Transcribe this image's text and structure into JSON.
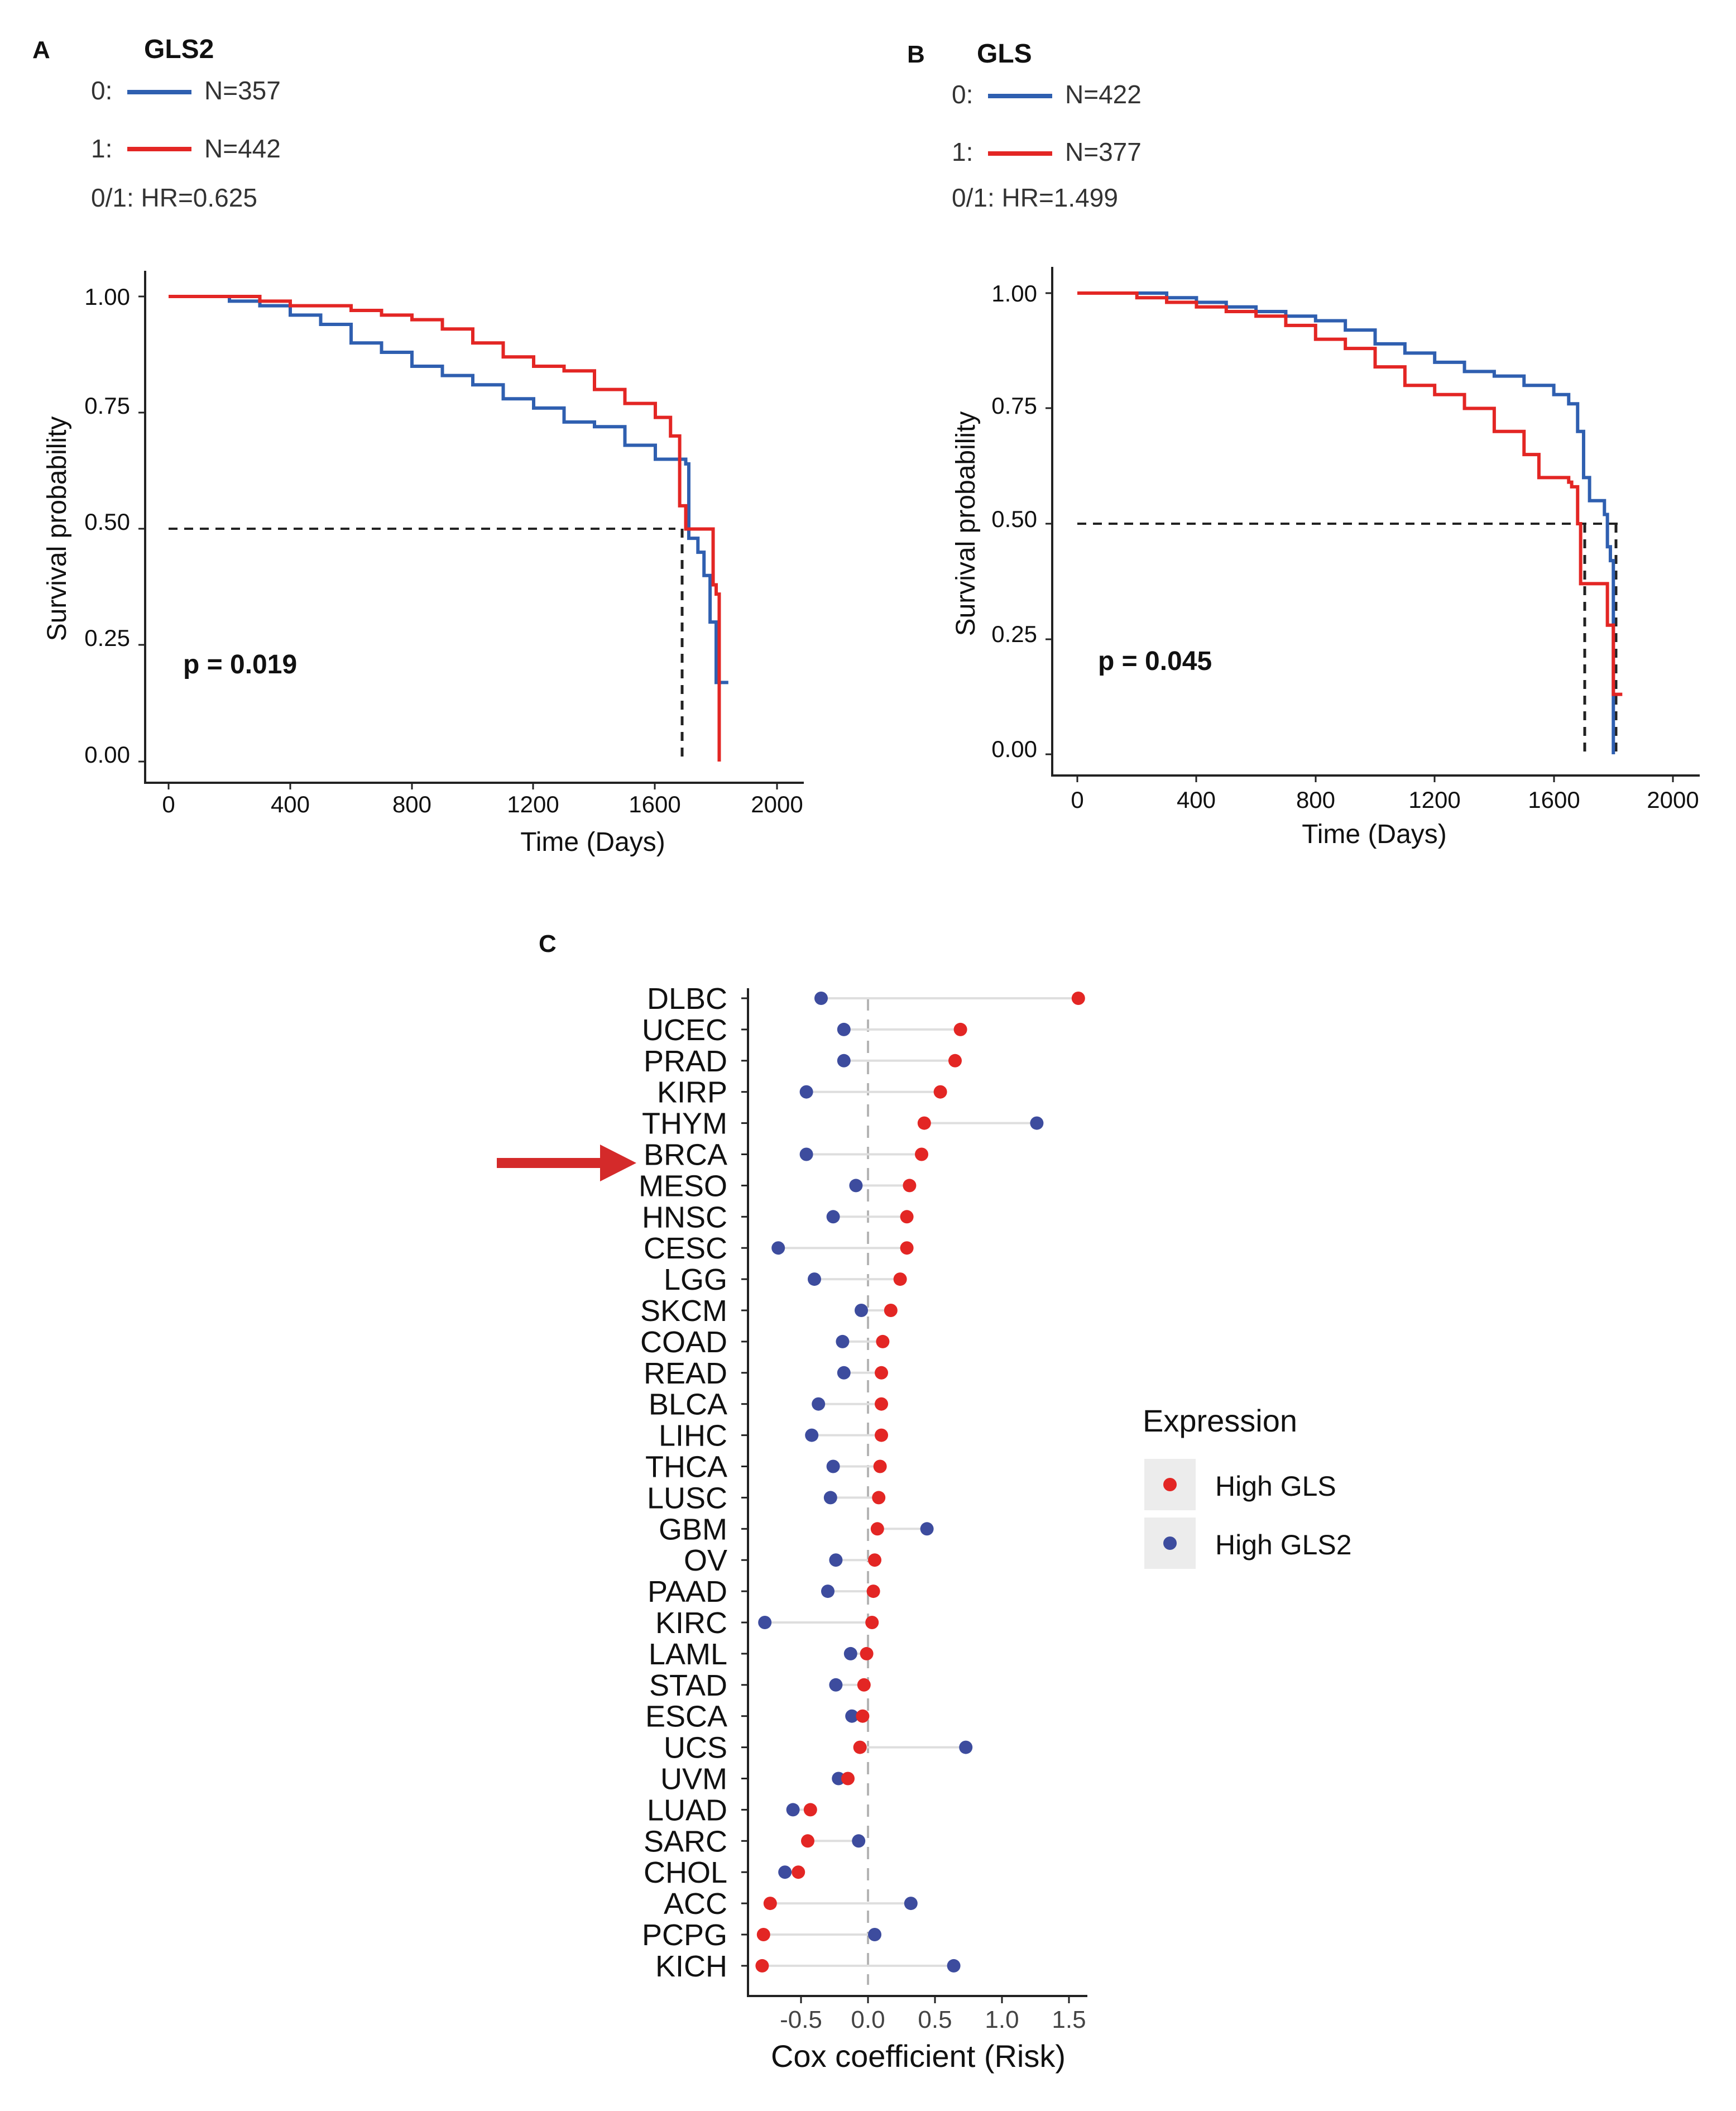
{
  "colors": {
    "group0": "#2f5fb0",
    "group1": "#e32624",
    "highGLS": "#e32624",
    "highGLS2": "#3d4c9e",
    "arrow": "#d42a2a",
    "segment": "#dedede",
    "axis": "#222222"
  },
  "panels": {
    "a": {
      "letter": "A",
      "gene": "GLS2",
      "legend": [
        {
          "key": "0:",
          "label": "N=357"
        },
        {
          "key": "1:",
          "label": "N=442"
        }
      ],
      "hr_text": "0/1: HR=0.625",
      "p_text": "p = 0.019",
      "ylabel": "Survival probability",
      "xlabel": "Time (Days)",
      "yticks": [
        "0.00",
        "0.25",
        "0.50",
        "0.75",
        "1.00"
      ],
      "xticks": [
        "0",
        "400",
        "800",
        "1200",
        "1600",
        "2000"
      ]
    },
    "b": {
      "letter": "B",
      "gene": "GLS",
      "legend": [
        {
          "key": "0:",
          "label": "N=422"
        },
        {
          "key": "1:",
          "label": "N=377"
        }
      ],
      "hr_text": "0/1: HR=1.499",
      "p_text": "p = 0.045",
      "ylabel": "Survival probability",
      "xlabel": "Time (Days)",
      "yticks": [
        "0.00",
        "0.25",
        "0.50",
        "0.75",
        "1.00"
      ],
      "xticks": [
        "0",
        "400",
        "800",
        "1200",
        "1600",
        "2000"
      ]
    },
    "c": {
      "letter": "C",
      "xlabel": "Cox coefficient (Risk)",
      "xticks": [
        "-0.5",
        "0.0",
        "0.5",
        "1.0",
        "1.5"
      ],
      "legend_title": "Expression",
      "legend_items": [
        "High GLS",
        "High GLS2"
      ],
      "highlight": "BRCA"
    }
  },
  "chart_data": [
    {
      "type": "line",
      "title": "GLS2",
      "xlabel": "Time (Days)",
      "ylabel": "Survival probability",
      "xlim": [
        0,
        2000
      ],
      "ylim": [
        0,
        1
      ],
      "median_line_y": 0.5,
      "series": [
        {
          "name": "0 (N=357)",
          "color": "#2f5fb0",
          "points": [
            [
              0,
              1.0
            ],
            [
              100,
              1.0
            ],
            [
              200,
              0.99
            ],
            [
              300,
              0.98
            ],
            [
              400,
              0.96
            ],
            [
              500,
              0.94
            ],
            [
              600,
              0.9
            ],
            [
              700,
              0.88
            ],
            [
              800,
              0.85
            ],
            [
              900,
              0.83
            ],
            [
              1000,
              0.81
            ],
            [
              1100,
              0.78
            ],
            [
              1200,
              0.76
            ],
            [
              1300,
              0.73
            ],
            [
              1400,
              0.72
            ],
            [
              1500,
              0.68
            ],
            [
              1600,
              0.65
            ],
            [
              1700,
              0.64
            ],
            [
              1710,
              0.48
            ],
            [
              1740,
              0.45
            ],
            [
              1760,
              0.4
            ],
            [
              1780,
              0.3
            ],
            [
              1800,
              0.17
            ],
            [
              1840,
              0.17
            ]
          ]
        },
        {
          "name": "1 (N=442)",
          "color": "#e32624",
          "points": [
            [
              0,
              1.0
            ],
            [
              100,
              1.0
            ],
            [
              200,
              1.0
            ],
            [
              300,
              0.99
            ],
            [
              400,
              0.98
            ],
            [
              500,
              0.98
            ],
            [
              600,
              0.97
            ],
            [
              700,
              0.96
            ],
            [
              800,
              0.95
            ],
            [
              900,
              0.93
            ],
            [
              1000,
              0.9
            ],
            [
              1100,
              0.87
            ],
            [
              1200,
              0.85
            ],
            [
              1300,
              0.84
            ],
            [
              1400,
              0.8
            ],
            [
              1500,
              0.77
            ],
            [
              1600,
              0.74
            ],
            [
              1650,
              0.7
            ],
            [
              1680,
              0.55
            ],
            [
              1700,
              0.5
            ],
            [
              1780,
              0.5
            ],
            [
              1790,
              0.38
            ],
            [
              1800,
              0.36
            ],
            [
              1810,
              0.0
            ]
          ]
        }
      ]
    },
    {
      "type": "line",
      "title": "GLS",
      "xlabel": "Time (Days)",
      "ylabel": "Survival probability",
      "xlim": [
        0,
        2000
      ],
      "ylim": [
        0,
        1
      ],
      "median_line_y": 0.5,
      "series": [
        {
          "name": "0 (N=422)",
          "color": "#2f5fb0",
          "points": [
            [
              0,
              1.0
            ],
            [
              100,
              1.0
            ],
            [
              200,
              1.0
            ],
            [
              300,
              0.99
            ],
            [
              400,
              0.98
            ],
            [
              500,
              0.97
            ],
            [
              600,
              0.96
            ],
            [
              700,
              0.95
            ],
            [
              800,
              0.94
            ],
            [
              900,
              0.92
            ],
            [
              1000,
              0.89
            ],
            [
              1100,
              0.87
            ],
            [
              1200,
              0.85
            ],
            [
              1300,
              0.83
            ],
            [
              1400,
              0.82
            ],
            [
              1500,
              0.8
            ],
            [
              1600,
              0.78
            ],
            [
              1650,
              0.76
            ],
            [
              1680,
              0.7
            ],
            [
              1700,
              0.6
            ],
            [
              1720,
              0.55
            ],
            [
              1770,
              0.52
            ],
            [
              1780,
              0.45
            ],
            [
              1790,
              0.42
            ],
            [
              1800,
              0.0
            ]
          ]
        },
        {
          "name": "1 (N=377)",
          "color": "#e32624",
          "points": [
            [
              0,
              1.0
            ],
            [
              100,
              1.0
            ],
            [
              200,
              0.99
            ],
            [
              300,
              0.98
            ],
            [
              400,
              0.97
            ],
            [
              500,
              0.96
            ],
            [
              600,
              0.95
            ],
            [
              700,
              0.93
            ],
            [
              800,
              0.9
            ],
            [
              900,
              0.88
            ],
            [
              1000,
              0.84
            ],
            [
              1100,
              0.8
            ],
            [
              1200,
              0.78
            ],
            [
              1300,
              0.75
            ],
            [
              1400,
              0.7
            ],
            [
              1500,
              0.65
            ],
            [
              1550,
              0.6
            ],
            [
              1650,
              0.59
            ],
            [
              1660,
              0.58
            ],
            [
              1680,
              0.5
            ],
            [
              1690,
              0.37
            ],
            [
              1760,
              0.37
            ],
            [
              1780,
              0.28
            ],
            [
              1800,
              0.13
            ],
            [
              1830,
              0.13
            ]
          ]
        }
      ]
    },
    {
      "type": "scatter",
      "title": "",
      "xlabel": "Cox coefficient (Risk)",
      "xlim": [
        -0.92,
        1.65
      ],
      "x_reference_line": 0,
      "legend_title": "Expression",
      "categories": [
        "DLBC",
        "UCEC",
        "PRAD",
        "KIRP",
        "THYM",
        "BRCA",
        "MESO",
        "HNSC",
        "CESC",
        "LGG",
        "SKCM",
        "COAD",
        "READ",
        "BLCA",
        "LIHC",
        "THCA",
        "LUSC",
        "GBM",
        "OV",
        "PAAD",
        "KIRC",
        "LAML",
        "STAD",
        "ESCA",
        "UCS",
        "UVM",
        "LUAD",
        "SARC",
        "CHOL",
        "ACC",
        "PCPG",
        "KICH"
      ],
      "series": [
        {
          "name": "High GLS",
          "color": "#e32624",
          "values": [
            1.57,
            0.69,
            0.65,
            0.54,
            0.42,
            0.4,
            0.31,
            0.29,
            0.29,
            0.24,
            0.17,
            0.11,
            0.1,
            0.1,
            0.1,
            0.09,
            0.08,
            0.07,
            0.05,
            0.04,
            0.03,
            -0.01,
            -0.03,
            -0.04,
            -0.06,
            -0.15,
            -0.43,
            -0.45,
            -0.52,
            -0.73,
            -0.78,
            -0.79
          ]
        },
        {
          "name": "High GLS2",
          "color": "#3d4c9e",
          "values": [
            -0.35,
            -0.18,
            -0.18,
            -0.46,
            1.26,
            -0.46,
            -0.09,
            -0.26,
            -0.67,
            -0.4,
            -0.05,
            -0.19,
            -0.18,
            -0.37,
            -0.42,
            -0.26,
            -0.28,
            0.44,
            -0.24,
            -0.3,
            -0.77,
            -0.13,
            -0.24,
            -0.12,
            0.73,
            -0.22,
            -0.56,
            -0.07,
            -0.62,
            0.32,
            0.05,
            0.64
          ]
        }
      ]
    }
  ]
}
